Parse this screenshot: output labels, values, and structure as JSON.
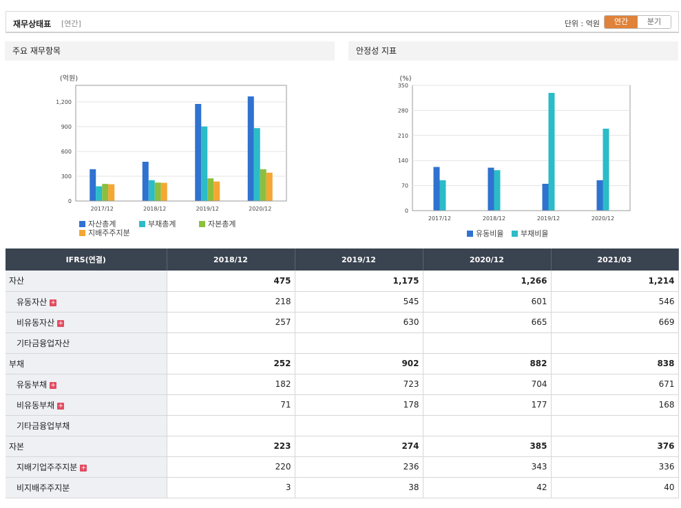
{
  "header": {
    "title": "재무상태표",
    "subtitle": "[연간]",
    "unit_label": "단위 : 억원",
    "toggle": {
      "annual": "연간",
      "quarterly": "분기"
    }
  },
  "panels": {
    "left_title": "주요 재무항목",
    "right_title": "안정성 지표"
  },
  "chart_data": [
    {
      "type": "bar",
      "title": "",
      "ylabel": "(억원)",
      "xlabel": "",
      "ylim": [
        0,
        1400
      ],
      "yticks": [
        "0",
        "300",
        "600",
        "900",
        "1,200"
      ],
      "categories": [
        "2017/12",
        "2018/12",
        "2019/12",
        "2020/12"
      ],
      "series": [
        {
          "name": "자산총계",
          "color": "#2f72d0",
          "values": [
            385,
            475,
            1175,
            1266
          ]
        },
        {
          "name": "부채총계",
          "color": "#2bbcc8",
          "values": [
            178,
            252,
            902,
            882
          ]
        },
        {
          "name": "자본총계",
          "color": "#8cbf3f",
          "values": [
            207,
            223,
            274,
            385
          ]
        },
        {
          "name": "지배주주지분",
          "color": "#f5a733",
          "values": [
            203,
            220,
            236,
            343
          ]
        }
      ],
      "grid": true,
      "legend": "bottom"
    },
    {
      "type": "bar",
      "title": "",
      "ylabel": "(%)",
      "xlabel": "",
      "ylim": [
        0,
        350
      ],
      "yticks": [
        "0",
        "70",
        "140",
        "210",
        "280",
        "350"
      ],
      "categories": [
        "2017/12",
        "2018/12",
        "2019/12",
        "2020/12"
      ],
      "series": [
        {
          "name": "유동비율",
          "color": "#2f72d0",
          "values": [
            122,
            120,
            75,
            85
          ]
        },
        {
          "name": "부채비율",
          "color": "#2bbcc8",
          "values": [
            85,
            113,
            329,
            229
          ]
        }
      ],
      "grid": true,
      "legend": "bottom"
    }
  ],
  "table": {
    "header": [
      "IFRS(연결)",
      "2018/12",
      "2019/12",
      "2020/12",
      "2021/03"
    ],
    "rows": [
      {
        "label": "자산",
        "level": 0,
        "bold": true,
        "expand": false,
        "values": [
          "475",
          "1,175",
          "1,266",
          "1,214"
        ]
      },
      {
        "label": "유동자산",
        "level": 1,
        "bold": false,
        "expand": true,
        "values": [
          "218",
          "545",
          "601",
          "546"
        ]
      },
      {
        "label": "비유동자산",
        "level": 1,
        "bold": false,
        "expand": true,
        "values": [
          "257",
          "630",
          "665",
          "669"
        ]
      },
      {
        "label": "기타금융업자산",
        "level": 1,
        "bold": false,
        "expand": false,
        "values": [
          "",
          "",
          "",
          ""
        ]
      },
      {
        "label": "부채",
        "level": 0,
        "bold": true,
        "expand": false,
        "values": [
          "252",
          "902",
          "882",
          "838"
        ]
      },
      {
        "label": "유동부채",
        "level": 1,
        "bold": false,
        "expand": true,
        "values": [
          "182",
          "723",
          "704",
          "671"
        ]
      },
      {
        "label": "비유동부채",
        "level": 1,
        "bold": false,
        "expand": true,
        "values": [
          "71",
          "178",
          "177",
          "168"
        ]
      },
      {
        "label": "기타금융업부채",
        "level": 1,
        "bold": false,
        "expand": false,
        "values": [
          "",
          "",
          "",
          ""
        ]
      },
      {
        "label": "자본",
        "level": 0,
        "bold": true,
        "expand": false,
        "values": [
          "223",
          "274",
          "385",
          "376"
        ]
      },
      {
        "label": "지배기업주주지분",
        "level": 1,
        "bold": false,
        "expand": true,
        "values": [
          "220",
          "236",
          "343",
          "336"
        ]
      },
      {
        "label": "비지배주주지분",
        "level": 1,
        "bold": false,
        "expand": false,
        "values": [
          "3",
          "38",
          "42",
          "40"
        ]
      }
    ]
  },
  "icons": {
    "expand": "plus-icon"
  }
}
